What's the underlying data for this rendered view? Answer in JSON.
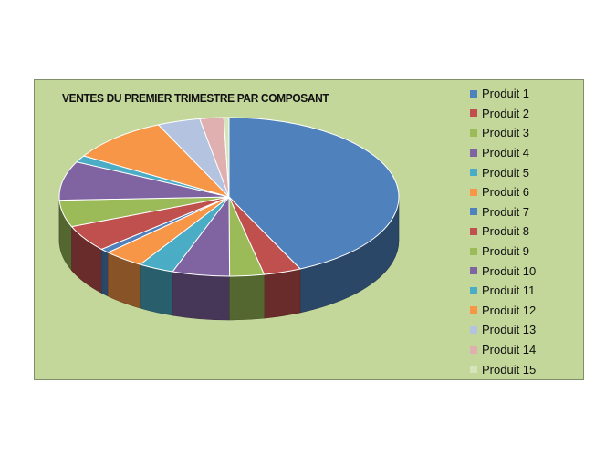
{
  "chart_data": {
    "type": "pie",
    "style": "3d",
    "title": "VENTES DU PREMIER TRIMESTRE PAR COMPOSANT",
    "legend_position": "right",
    "categories": [
      "Produit 1",
      "Produit 2",
      "Produit 3",
      "Produit 4",
      "Produit 5",
      "Produit 6",
      "Produit 7",
      "Produit 8",
      "Produit 9",
      "Produit 10",
      "Produit 11",
      "Produit 12",
      "Produit 13",
      "Produit 14",
      "Produit 15"
    ],
    "values": [
      43.5,
      3.6,
      3.3,
      5.5,
      3.4,
      3.9,
      0.9,
      5.4,
      5.5,
      8.0,
      1.4,
      9.6,
      4.1,
      2.3,
      0.5
    ],
    "colors": [
      "#4f81bd",
      "#c0504d",
      "#9bbb59",
      "#8064a2",
      "#4bacc6",
      "#f79646",
      "#4f81bd",
      "#c0504d",
      "#9bbb59",
      "#8064a2",
      "#4bacc6",
      "#f79646",
      "#b3c3e0",
      "#e0b0b0",
      "#d6e4bc"
    ],
    "background": "#c4d79b"
  }
}
